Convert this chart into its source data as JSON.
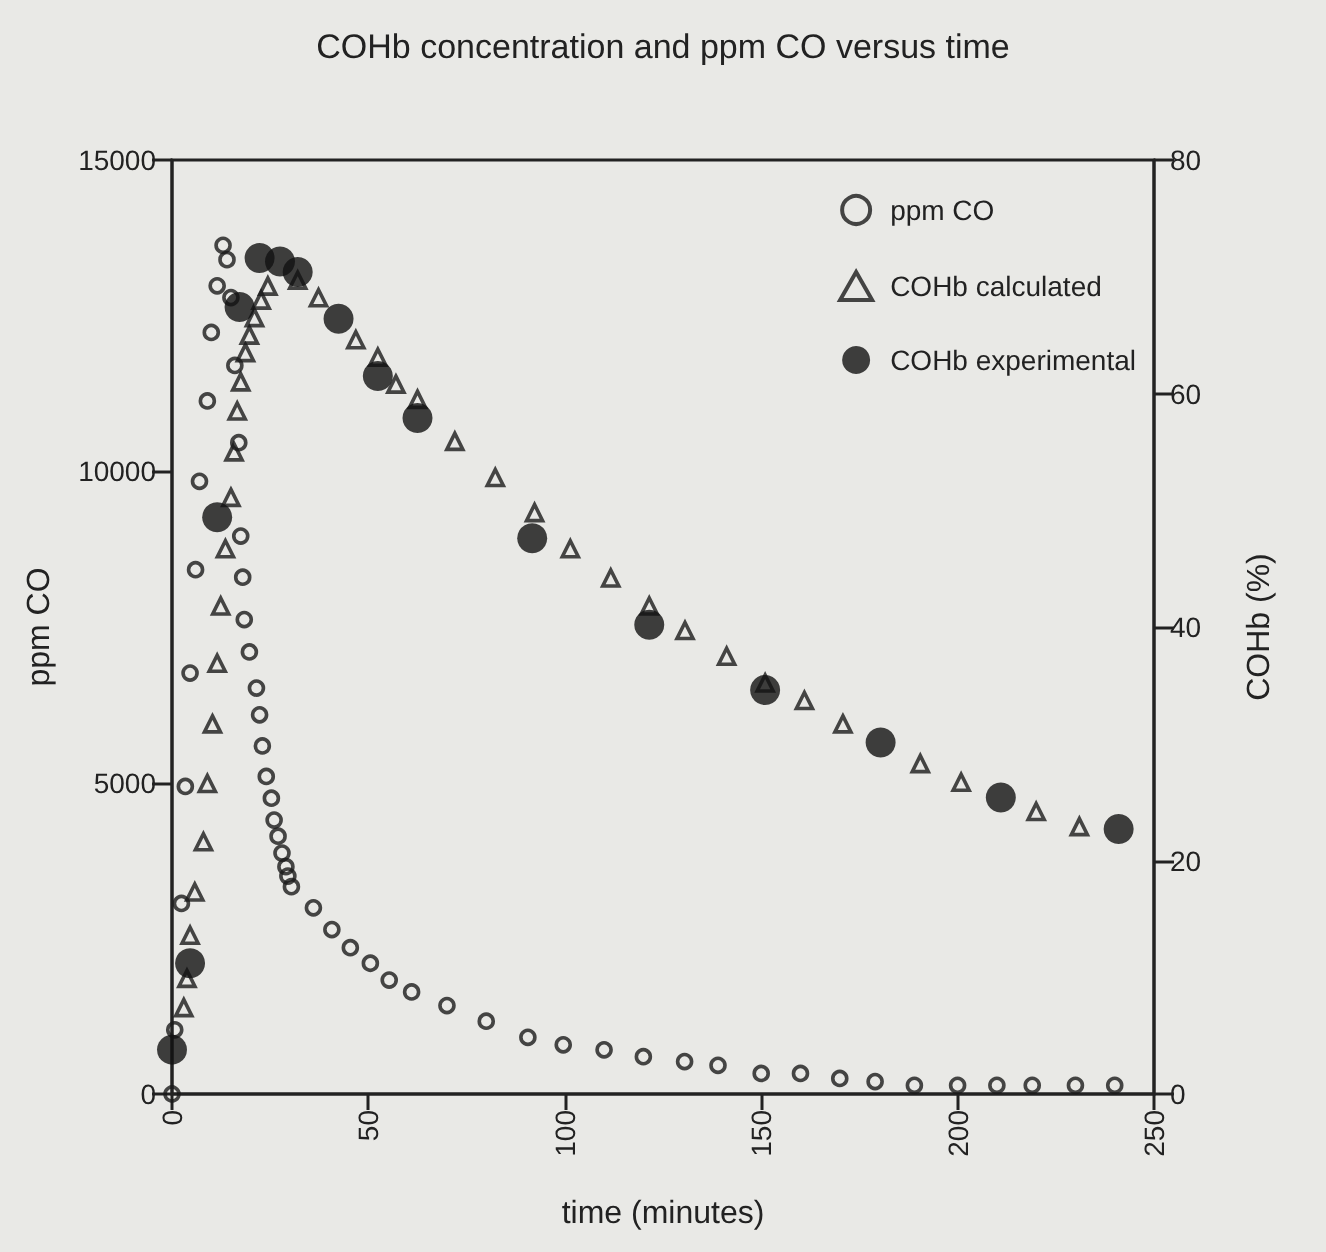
{
  "chart_data": {
    "type": "scatter",
    "title": "COHb concentration and ppm CO versus time",
    "xlabel": "time (minutes)",
    "ylabel": "ppm CO",
    "y2label": "COHb (%)",
    "xlim": [
      0,
      250
    ],
    "xticks": [
      0,
      50,
      100,
      150,
      200,
      250
    ],
    "ylim": [
      0,
      15000
    ],
    "yticks": [
      0,
      5000,
      10000,
      15000
    ],
    "y2lim": [
      0,
      80
    ],
    "y2ticks": [
      0,
      20,
      40,
      60,
      80
    ],
    "legend": "top right",
    "grid": false,
    "series": [
      {
        "name": "ppm CO",
        "color": "#1a1a1a",
        "marker": "circle",
        "x": [
          0,
          0.7,
          2.4,
          3.4,
          4.6,
          6,
          7,
          9,
          10,
          11.5,
          13,
          14,
          15,
          16,
          17,
          17.5,
          18,
          18.4,
          19.7,
          21.5,
          22.3,
          23,
          24,
          25.3,
          26,
          27,
          28,
          29,
          29.5,
          30.4,
          36,
          40.7,
          45.4,
          50.5,
          55.3,
          61,
          70,
          80,
          90.6,
          99.6,
          110,
          120,
          130.5,
          139,
          150,
          160,
          170,
          179,
          189,
          200,
          210,
          219,
          230,
          240
        ],
        "values": [
          0,
          1030,
          3060,
          4940,
          6760,
          8420,
          9840,
          11130,
          12230,
          12980,
          13630,
          13400,
          12790,
          11700,
          10460,
          8960,
          8300,
          7620,
          7100,
          6520,
          6090,
          5590,
          5100,
          4750,
          4400,
          4140,
          3870,
          3650,
          3500,
          3330,
          2990,
          2640,
          2350,
          2100,
          1830,
          1640,
          1420,
          1170,
          910,
          790,
          710,
          600,
          520,
          460,
          330,
          330,
          250,
          200,
          140,
          140,
          140,
          140,
          140,
          140
        ]
      },
      {
        "name": "COHb calculated",
        "color": "#1a1a1a",
        "marker": "triangle",
        "axis": "y2",
        "x": [
          3,
          3.8,
          4.6,
          5.8,
          8,
          9,
          10.3,
          11.5,
          12.4,
          13.6,
          15,
          15.8,
          16.6,
          17.5,
          18.7,
          19.7,
          21,
          22.7,
          24.4,
          32,
          37.3,
          46.8,
          52.4,
          57,
          62.5,
          72,
          82.3,
          92.3,
          101.4,
          111.7,
          121.5,
          130.6,
          141.2,
          151,
          161,
          170.8,
          190.5,
          200.9,
          220,
          231
        ],
        "values": [
          7.4,
          9.9,
          13.6,
          17.3,
          21.6,
          26.6,
          31.7,
          36.9,
          41.8,
          46.7,
          51.1,
          55.0,
          58.5,
          61.0,
          63.5,
          65.0,
          66.5,
          68.0,
          69.2,
          69.7,
          68.2,
          64.6,
          63.1,
          60.8,
          59.5,
          55.9,
          52.8,
          49.8,
          46.7,
          44.2,
          41.8,
          39.7,
          37.5,
          35.2,
          33.7,
          31.7,
          28.3,
          26.7,
          24.2,
          22.9
        ]
      },
      {
        "name": "COHb experimental",
        "color": "#111111",
        "marker": "circle",
        "axis": "y2",
        "x": [
          0,
          4.6,
          11.5,
          17.2,
          22.3,
          27.5,
          32,
          42.4,
          52.4,
          62.5,
          91.7,
          121.5,
          151,
          180.4,
          211,
          241
        ],
        "values": [
          3.8,
          11.2,
          49.4,
          67.4,
          71.6,
          71.3,
          70.4,
          66.4,
          61.5,
          57.9,
          47.6,
          40.2,
          34.6,
          30.1,
          25.4,
          22.7
        ]
      }
    ]
  }
}
